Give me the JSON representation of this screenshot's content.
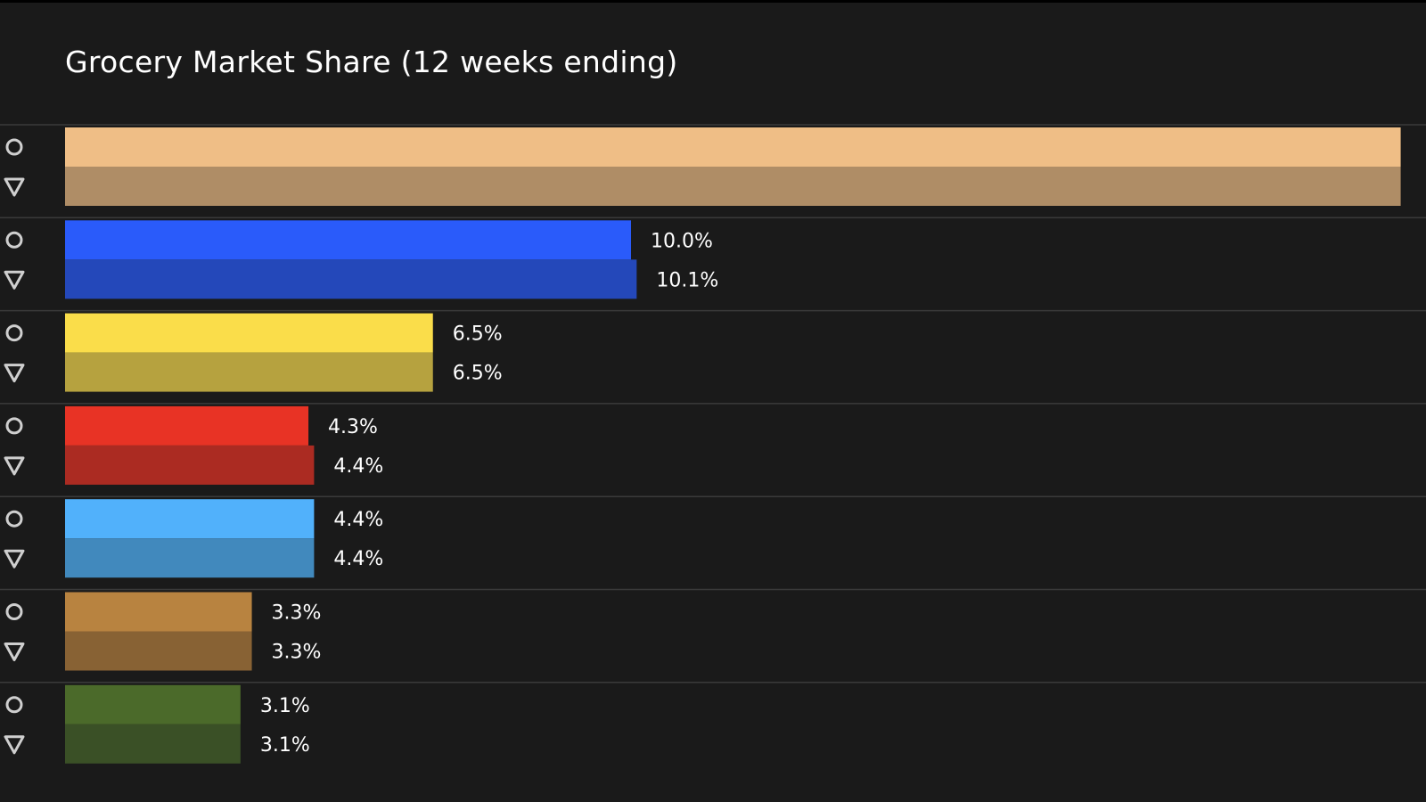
{
  "chart_data": {
    "type": "bar",
    "orientation": "horizontal",
    "title": "Grocery Market Share (12 weeks ending)",
    "xlabel": "",
    "ylabel": "",
    "grid": false,
    "legend": "none",
    "series": [
      {
        "marker": "circle-icon"
      },
      {
        "marker": "triangle-down-icon"
      }
    ],
    "groups": [
      {
        "color_a": "#efbe86",
        "color_b": "#af8d66",
        "values": [
          23.6,
          23.6
        ],
        "labels": [
          "",
          ""
        ]
      },
      {
        "color_a": "#2a5bfa",
        "color_b": "#2448ba",
        "values": [
          10.0,
          10.1
        ],
        "labels": [
          "10.0%",
          "10.1%"
        ]
      },
      {
        "color_a": "#fadd4a",
        "color_b": "#b6a23f",
        "values": [
          6.5,
          6.5
        ],
        "labels": [
          "6.5%",
          "6.5%"
        ]
      },
      {
        "color_a": "#e83325",
        "color_b": "#ab2b22",
        "values": [
          4.3,
          4.4
        ],
        "labels": [
          "4.3%",
          "4.4%"
        ]
      },
      {
        "color_a": "#51b1fb",
        "color_b": "#4189bd",
        "values": [
          4.4,
          4.4
        ],
        "labels": [
          "4.4%",
          "4.4%"
        ]
      },
      {
        "color_a": "#b88340",
        "color_b": "#886234",
        "values": [
          3.3,
          3.3
        ],
        "labels": [
          "3.3%",
          "3.3%"
        ]
      },
      {
        "color_a": "#4b6a2a",
        "color_b": "#3a5026",
        "values": [
          3.1,
          3.1
        ],
        "labels": [
          "3.1%",
          "3.1%"
        ]
      }
    ]
  }
}
